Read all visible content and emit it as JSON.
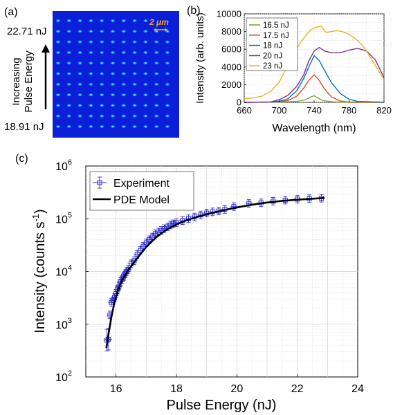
{
  "panels": {
    "a": {
      "label": "(a)",
      "top_energy": "22.71 nJ",
      "bottom_energy": "18.91 nJ",
      "arrow_label_line1": "Increasing",
      "arrow_label_line2": "Pulse Energy",
      "scale_bar_label": "2 μm",
      "grid_rows": 11,
      "grid_cols": 11,
      "background_color": "#0b1ed8",
      "spot_color": "#3fe6ff",
      "scale_color": "#f5a623"
    },
    "b": {
      "label": "(b)"
    },
    "c": {
      "label": "(c)"
    }
  },
  "chart_data": [
    {
      "id": "b",
      "type": "line",
      "xlabel": "Wavelength (nm)",
      "ylabel": "Intensity (arb. units)",
      "xlim": [
        660,
        820
      ],
      "ylim": [
        0,
        10000
      ],
      "xticks": [
        660,
        700,
        740,
        780,
        820
      ],
      "yticks": [
        0,
        2000,
        4000,
        6000,
        8000,
        10000
      ],
      "grid": true,
      "legend_position": "top-left",
      "series": [
        {
          "name": "16.5 nJ",
          "color": "#77ac30",
          "points": [
            [
              660,
              0
            ],
            [
              700,
              20
            ],
            [
              720,
              100
            ],
            [
              730,
              300
            ],
            [
              736,
              600
            ],
            [
              740,
              750
            ],
            [
              744,
              500
            ],
            [
              750,
              200
            ],
            [
              760,
              60
            ],
            [
              780,
              0
            ],
            [
              820,
              0
            ]
          ]
        },
        {
          "name": "17.5 nJ",
          "color": "#d95319",
          "points": [
            [
              660,
              0
            ],
            [
              690,
              30
            ],
            [
              700,
              80
            ],
            [
              710,
              200
            ],
            [
              720,
              700
            ],
            [
              728,
              1600
            ],
            [
              734,
              2500
            ],
            [
              740,
              3100
            ],
            [
              745,
              2600
            ],
            [
              752,
              1500
            ],
            [
              760,
              600
            ],
            [
              770,
              150
            ],
            [
              780,
              30
            ],
            [
              820,
              0
            ]
          ]
        },
        {
          "name": "18 nJ",
          "color": "#0072bd",
          "points": [
            [
              660,
              0
            ],
            [
              690,
              40
            ],
            [
              700,
              120
            ],
            [
              710,
              400
            ],
            [
              720,
              1300
            ],
            [
              728,
              2700
            ],
            [
              734,
              4000
            ],
            [
              740,
              5300
            ],
            [
              746,
              4700
            ],
            [
              752,
              3600
            ],
            [
              760,
              2200
            ],
            [
              770,
              1000
            ],
            [
              780,
              350
            ],
            [
              790,
              100
            ],
            [
              820,
              20
            ]
          ]
        },
        {
          "name": "20 nJ",
          "color": "#7e2f8e",
          "points": [
            [
              660,
              0
            ],
            [
              690,
              50
            ],
            [
              700,
              300
            ],
            [
              710,
              800
            ],
            [
              720,
              1800
            ],
            [
              728,
              3100
            ],
            [
              734,
              4700
            ],
            [
              740,
              5800
            ],
            [
              746,
              6200
            ],
            [
              752,
              5800
            ],
            [
              760,
              5600
            ],
            [
              770,
              5600
            ],
            [
              780,
              5900
            ],
            [
              790,
              6100
            ],
            [
              800,
              5800
            ],
            [
              810,
              4800
            ],
            [
              816,
              3600
            ],
            [
              820,
              2800
            ]
          ]
        },
        {
          "name": "23 nJ",
          "color": "#edb120",
          "points": [
            [
              660,
              400
            ],
            [
              670,
              500
            ],
            [
              680,
              700
            ],
            [
              690,
              1200
            ],
            [
              700,
              2300
            ],
            [
              708,
              3800
            ],
            [
              716,
              5400
            ],
            [
              724,
              6700
            ],
            [
              730,
              7500
            ],
            [
              736,
              8200
            ],
            [
              742,
              8500
            ],
            [
              748,
              8600
            ],
            [
              754,
              7900
            ],
            [
              760,
              8000
            ],
            [
              766,
              8100
            ],
            [
              772,
              8000
            ],
            [
              778,
              7800
            ],
            [
              786,
              7300
            ],
            [
              794,
              6600
            ],
            [
              800,
              5800
            ],
            [
              806,
              4800
            ],
            [
              812,
              3900
            ],
            [
              816,
              3200
            ],
            [
              820,
              2600
            ]
          ]
        }
      ]
    },
    {
      "id": "c",
      "type": "scatter",
      "xlabel": "Pulse Energy (nJ)",
      "ylabel": "Intensity (counts s",
      "ylabel_sup": "-1",
      "ylabel_close": ")",
      "xlim": [
        15,
        24
      ],
      "ylim": [
        100,
        1000000
      ],
      "yscale": "log",
      "xticks": [
        16,
        18,
        20,
        22,
        24
      ],
      "yticks_exp": [
        2,
        3,
        4,
        5,
        6
      ],
      "ytick_base": "10",
      "grid": true,
      "legend_position": "top-left",
      "series": [
        {
          "name": "Experiment",
          "color": "#2b2bd6",
          "marker": "square-errorbar",
          "x": [
            15.7,
            15.75,
            15.8,
            15.85,
            15.9,
            15.95,
            16.0,
            16.05,
            16.1,
            16.15,
            16.2,
            16.25,
            16.3,
            16.35,
            16.4,
            16.5,
            16.6,
            16.7,
            16.8,
            16.9,
            17.0,
            17.1,
            17.2,
            17.3,
            17.4,
            17.5,
            17.6,
            17.7,
            17.8,
            17.9,
            18.0,
            18.2,
            18.4,
            18.6,
            18.8,
            19.0,
            19.2,
            19.4,
            19.6,
            19.9,
            20.4,
            20.8,
            21.2,
            21.6,
            22.0,
            22.4,
            22.8
          ],
          "y": [
            500,
            520,
            1500,
            2600,
            2800,
            3200,
            3800,
            4600,
            5200,
            6500,
            7000,
            8000,
            9000,
            10000,
            11000,
            14000,
            16000,
            21000,
            25000,
            30000,
            35000,
            40000,
            45000,
            52000,
            56000,
            60000,
            65000,
            70000,
            76000,
            80000,
            84000,
            92000,
            100000,
            108000,
            118000,
            128000,
            135000,
            140000,
            150000,
            170000,
            195000,
            200000,
            215000,
            225000,
            235000,
            240000,
            245000
          ]
        },
        {
          "name": "PDE Model",
          "color": "#000000",
          "marker": "line",
          "points": [
            [
              15.68,
              350
            ],
            [
              15.75,
              650
            ],
            [
              15.85,
              1400
            ],
            [
              15.95,
              2600
            ],
            [
              16.05,
              4200
            ],
            [
              16.2,
              6800
            ],
            [
              16.4,
              10500
            ],
            [
              16.6,
              15000
            ],
            [
              16.8,
              21000
            ],
            [
              17.0,
              29000
            ],
            [
              17.2,
              38000
            ],
            [
              17.4,
              48000
            ],
            [
              17.6,
              58000
            ],
            [
              17.8,
              68000
            ],
            [
              18.0,
              78000
            ],
            [
              18.3,
              92000
            ],
            [
              18.6,
              105000
            ],
            [
              19.0,
              122000
            ],
            [
              19.4,
              138000
            ],
            [
              19.8,
              155000
            ],
            [
              20.2,
              172000
            ],
            [
              20.6,
              188000
            ],
            [
              21.0,
              203000
            ],
            [
              21.5,
              218000
            ],
            [
              22.0,
              230000
            ],
            [
              22.5,
              240000
            ],
            [
              22.9,
              248000
            ]
          ]
        }
      ]
    }
  ]
}
